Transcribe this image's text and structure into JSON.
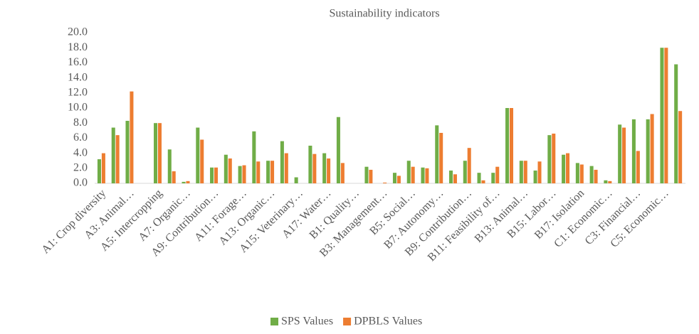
{
  "chart_data": {
    "type": "bar",
    "title": "Sustainability indicators",
    "categories": [
      "A1: Crop diversity",
      null,
      "A3: Animal…",
      null,
      "A5: Intercropping",
      null,
      "A7: Organic…",
      null,
      "A9: Contribution…",
      null,
      "A11: Forage…",
      null,
      "A13: Organic…",
      null,
      "A15: Veterinary…",
      null,
      "A17: Water…",
      null,
      "B1: Quality…",
      null,
      "B3: Management…",
      null,
      "B5: Social…",
      null,
      "B7: Autonomy…",
      null,
      "B9: Contribution…",
      null,
      "B11: Feasibility of…",
      null,
      "B13: Animal…",
      null,
      "B15: Labor…",
      null,
      "B17: Isolation",
      null,
      "C1: Economic…",
      null,
      "C3: Financial…",
      null,
      "C5: Economic…",
      null
    ],
    "series": [
      {
        "name": "SPS Values",
        "color": "#70ad47",
        "values": [
          3.2,
          7.4,
          8.3,
          0,
          8.0,
          4.5,
          0.2,
          7.4,
          2.1,
          3.8,
          2.3,
          6.9,
          3.0,
          5.6,
          0.8,
          5.0,
          4.0,
          8.8,
          0,
          2.2,
          0,
          1.4,
          3.0,
          2.1,
          7.7,
          1.7,
          3.0,
          1.4,
          1.4,
          10.0,
          3.0,
          1.7,
          6.4,
          3.8,
          2.7,
          2.3,
          0.4,
          7.8,
          8.5,
          8.5,
          18.0,
          15.8
        ]
      },
      {
        "name": "DPBLS Values",
        "color": "#ed7d31",
        "values": [
          4.0,
          6.4,
          12.2,
          0,
          8.0,
          1.6,
          0.3,
          5.8,
          2.1,
          3.3,
          2.4,
          2.9,
          3.0,
          4.0,
          0,
          3.9,
          3.3,
          2.7,
          0,
          1.8,
          0.1,
          1.0,
          2.2,
          2.0,
          6.7,
          1.2,
          4.7,
          0.4,
          2.2,
          10.0,
          3.0,
          2.9,
          6.6,
          4.0,
          2.5,
          1.8,
          0.3,
          7.4,
          4.3,
          9.2,
          18.0,
          9.6
        ]
      }
    ],
    "ylim": [
      0,
      20
    ],
    "yticks": [
      {
        "value": 0,
        "label": "0.0"
      },
      {
        "value": 2,
        "label": "2.0"
      },
      {
        "value": 4,
        "label": "4.0"
      },
      {
        "value": 6,
        "label": "6.0"
      },
      {
        "value": 8,
        "label": "8.0"
      },
      {
        "value": 10,
        "label": "10.0"
      },
      {
        "value": 12,
        "label": "12.0"
      },
      {
        "value": 14,
        "label": "14.0"
      },
      {
        "value": 16,
        "label": "16.0"
      },
      {
        "value": 18,
        "label": "18.0"
      },
      {
        "value": 20,
        "label": "20.0"
      }
    ],
    "legend": "bottom"
  }
}
